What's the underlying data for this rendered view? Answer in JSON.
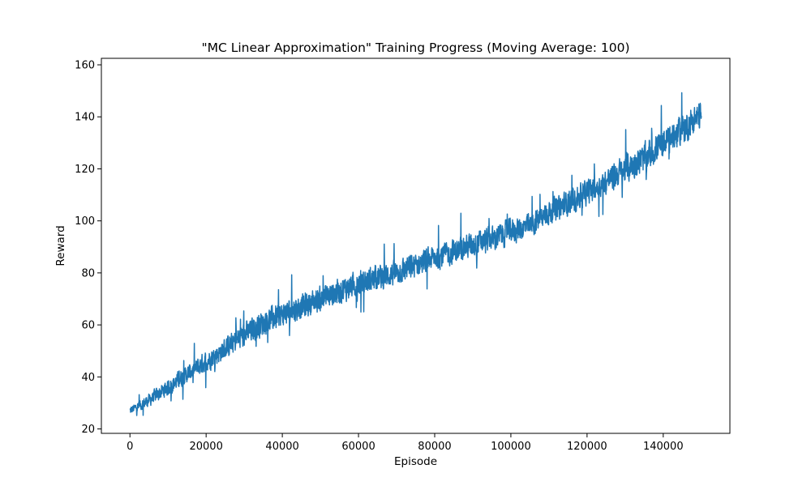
{
  "chart_data": {
    "type": "line",
    "title": "\"MC Linear Approximation\" Training Progress (Moving Average: 100)",
    "xlabel": "Episode",
    "ylabel": "Reward",
    "xlim": [
      -7500,
      157500
    ],
    "ylim": [
      18.3,
      162.5
    ],
    "x_ticks": [
      0,
      20000,
      40000,
      60000,
      80000,
      100000,
      120000,
      140000
    ],
    "y_ticks": [
      20,
      40,
      60,
      80,
      100,
      120,
      140,
      160
    ],
    "grid": false,
    "legend": "none",
    "series": [
      {
        "color": "#1f77b4",
        "x": [
          0,
          5000,
          10000,
          15000,
          20000,
          25000,
          30000,
          35000,
          40000,
          45000,
          50000,
          55000,
          60000,
          65000,
          70000,
          75000,
          80000,
          85000,
          90000,
          95000,
          100000,
          105000,
          110000,
          115000,
          120000,
          125000,
          130000,
          135000,
          140000,
          145000,
          150000
        ],
        "y": [
          27,
          31,
          36,
          41,
          46,
          51,
          56,
          61,
          64,
          67,
          70,
          73,
          76,
          78,
          80,
          83,
          86,
          88,
          91,
          93,
          96,
          98,
          103,
          107,
          111,
          115,
          120,
          124,
          130,
          135,
          141
        ],
        "spread": [
          2,
          3,
          4,
          4,
          5,
          5,
          6,
          6,
          6,
          6,
          6,
          6,
          6,
          6,
          6,
          6,
          6,
          6,
          6,
          6,
          6,
          6,
          6,
          6,
          6,
          6,
          7,
          7,
          7,
          7,
          7
        ]
      }
    ]
  }
}
